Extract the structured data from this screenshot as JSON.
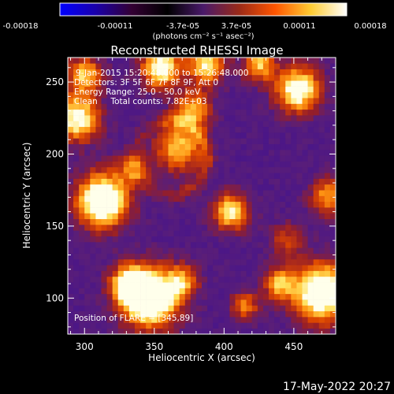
{
  "title": "Reconstructed RHESSI Image",
  "colorbar": {
    "ticks": [
      "-0.00018",
      "-0.00011",
      "-3.7e-05",
      "3.7e-05",
      "0.00011",
      "0.00018"
    ],
    "unit_label": "(photons cm⁻² s⁻¹ asec⁻²)",
    "colors": [
      "#0000ff",
      "#1a00aa",
      "#330033",
      "#000000",
      "#4a1a6a",
      "#9a2a18",
      "#ff5500",
      "#ffcc33",
      "#ffffff"
    ]
  },
  "info": {
    "time_range": "9-Jan-2015 15:20:48.000 to 15:26:48.000",
    "detectors": "Detectors: 3F 5F 6F 7F 8F 9F, Att 0",
    "energy": "Energy Range: 25.0 - 50.0 keV",
    "clean": "Clean     Total counts: 7.82E+03",
    "position": "Position of FLARE = [345,89]"
  },
  "footer_date": "17-May-2022 20:27",
  "chart_data": {
    "type": "heatmap",
    "title": "Reconstructed RHESSI Image",
    "xlabel": "Heliocentric X (arcsec)",
    "ylabel": "Heliocentric Y (arcsec)",
    "xlim": [
      288,
      480
    ],
    "ylim": [
      75,
      267
    ],
    "xticks": [
      "300",
      "350",
      "400",
      "450"
    ],
    "yticks": [
      "100",
      "150",
      "200",
      "250"
    ],
    "xtick_values": [
      300,
      350,
      400,
      450
    ],
    "ytick_values": [
      100,
      150,
      200,
      250
    ],
    "blobs": [
      {
        "x": 313,
        "y": 168,
        "r": 13,
        "amp": 1.0
      },
      {
        "x": 347,
        "y": 100,
        "r": 14,
        "amp": 1.1
      },
      {
        "x": 332,
        "y": 110,
        "r": 9,
        "amp": 0.7
      },
      {
        "x": 470,
        "y": 104,
        "r": 14,
        "amp": 1.0
      },
      {
        "x": 440,
        "y": 110,
        "r": 8,
        "amp": 0.55
      },
      {
        "x": 295,
        "y": 225,
        "r": 11,
        "amp": 0.8
      },
      {
        "x": 300,
        "y": 255,
        "r": 9,
        "amp": 0.6
      },
      {
        "x": 453,
        "y": 245,
        "r": 11,
        "amp": 0.85
      },
      {
        "x": 355,
        "y": 260,
        "r": 10,
        "amp": 0.8
      },
      {
        "x": 388,
        "y": 262,
        "r": 9,
        "amp": 0.7
      },
      {
        "x": 425,
        "y": 262,
        "r": 8,
        "amp": 0.6
      },
      {
        "x": 405,
        "y": 160,
        "r": 9,
        "amp": 0.7
      },
      {
        "x": 368,
        "y": 205,
        "r": 12,
        "amp": 0.6
      },
      {
        "x": 378,
        "y": 232,
        "r": 9,
        "amp": 0.55
      },
      {
        "x": 370,
        "y": 112,
        "r": 8,
        "amp": 0.5
      },
      {
        "x": 415,
        "y": 95,
        "r": 7,
        "amp": 0.45
      },
      {
        "x": 475,
        "y": 170,
        "r": 9,
        "amp": 0.55
      },
      {
        "x": 335,
        "y": 190,
        "r": 8,
        "amp": 0.4
      },
      {
        "x": 445,
        "y": 140,
        "r": 8,
        "amp": 0.35
      }
    ]
  }
}
